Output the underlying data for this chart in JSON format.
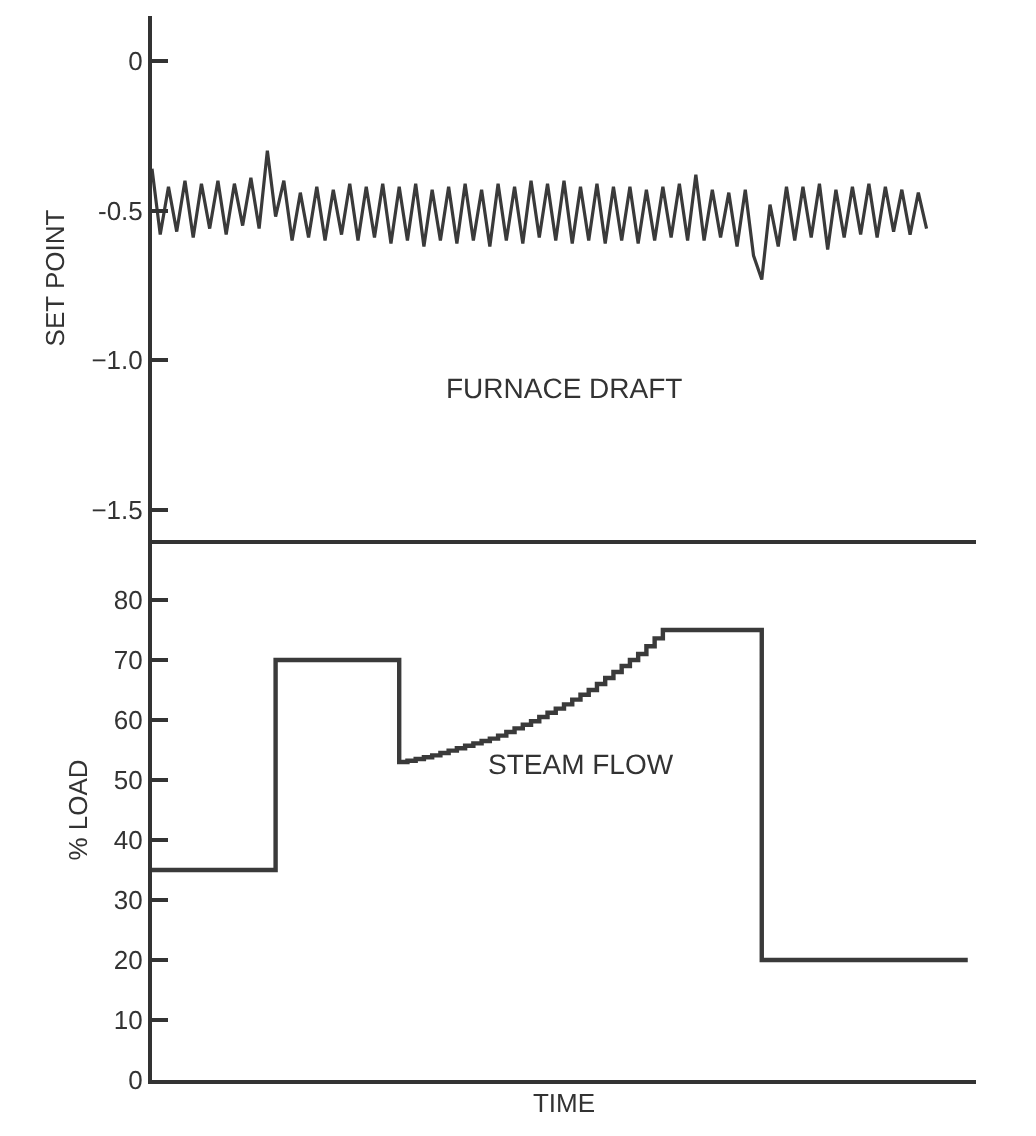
{
  "chart_data": [
    {
      "type": "line",
      "ylabel": "SET POINT",
      "tick_labels": "y",
      "ylim": [
        -1.6,
        0.15
      ],
      "yticks": [
        0,
        {
          "value": -0.5,
          "label": "-0.5"
        },
        {
          "value": -1.0,
          "label": "−1.0"
        },
        {
          "value": -1.5,
          "label": "−1.5"
        }
      ],
      "categories": [
        null,
        null,
        null,
        null,
        null,
        null,
        null,
        null,
        null,
        null,
        null,
        null,
        null,
        null,
        null,
        null,
        null,
        null,
        null,
        null,
        null,
        null,
        null,
        null,
        null,
        null,
        null,
        null,
        null,
        null,
        null,
        null,
        null,
        null,
        null,
        null,
        null,
        null,
        null,
        null,
        null,
        null,
        null,
        null,
        null,
        null,
        null,
        null,
        null,
        null,
        null,
        null,
        null,
        null,
        null,
        null,
        null,
        null,
        null,
        null,
        null,
        null,
        null,
        null,
        null,
        null,
        null,
        null,
        null,
        null,
        null,
        null,
        null,
        null,
        null,
        null,
        null,
        null,
        null,
        null,
        null,
        null,
        null,
        null,
        null,
        null,
        null,
        null,
        null,
        null,
        null,
        null,
        null,
        null,
        null,
        null,
        null,
        null,
        null,
        null
      ],
      "series": [
        {
          "name": "FURNACE DRAFT",
          "color": "#3a3a3a",
          "values": [
            -0.36,
            -0.58,
            -0.42,
            -0.57,
            -0.4,
            -0.59,
            -0.41,
            -0.56,
            -0.4,
            -0.58,
            -0.41,
            -0.55,
            -0.39,
            -0.56,
            -0.3,
            -0.52,
            -0.4,
            -0.6,
            -0.44,
            -0.59,
            -0.42,
            -0.6,
            -0.43,
            -0.58,
            -0.41,
            -0.6,
            -0.42,
            -0.59,
            -0.41,
            -0.61,
            -0.42,
            -0.6,
            -0.41,
            -0.62,
            -0.43,
            -0.6,
            -0.42,
            -0.61,
            -0.41,
            -0.6,
            -0.43,
            -0.62,
            -0.41,
            -0.6,
            -0.42,
            -0.61,
            -0.4,
            -0.59,
            -0.41,
            -0.6,
            -0.4,
            -0.61,
            -0.42,
            -0.6,
            -0.41,
            -0.61,
            -0.42,
            -0.6,
            -0.42,
            -0.61,
            -0.43,
            -0.6,
            -0.42,
            -0.59,
            -0.41,
            -0.6,
            -0.38,
            -0.6,
            -0.43,
            -0.59,
            -0.44,
            -0.62,
            -0.43,
            -0.65,
            -0.73,
            -0.48,
            -0.62,
            -0.42,
            -0.6,
            -0.42,
            -0.59,
            -0.41,
            -0.63,
            -0.43,
            -0.59,
            -0.42,
            -0.58,
            -0.41,
            -0.59,
            -0.42,
            -0.57,
            -0.43,
            -0.58,
            -0.44,
            -0.56,
            null,
            null,
            null,
            null,
            null
          ]
        }
      ]
    },
    {
      "type": "step",
      "xlabel": "TIME",
      "ylabel": "% LOAD",
      "tick_labels": "y",
      "ylim": [
        0,
        90
      ],
      "yticks": [
        0,
        10,
        20,
        30,
        40,
        50,
        60,
        70,
        80
      ],
      "categories": [
        null,
        null,
        null,
        null,
        null,
        null,
        null,
        null,
        null,
        null,
        null,
        null,
        null,
        null,
        null,
        null,
        null,
        null,
        null,
        null,
        null,
        null,
        null,
        null,
        null,
        null,
        null,
        null,
        null,
        null,
        null,
        null,
        null,
        null,
        null,
        null,
        null,
        null,
        null,
        null,
        null,
        null,
        null,
        null,
        null,
        null,
        null,
        null,
        null,
        null,
        null,
        null,
        null,
        null,
        null,
        null,
        null,
        null,
        null,
        null,
        null,
        null,
        null,
        null,
        null,
        null,
        null,
        null,
        null,
        null,
        null,
        null,
        null,
        null,
        null,
        null,
        null,
        null,
        null,
        null,
        null,
        null,
        null,
        null,
        null,
        null,
        null,
        null,
        null,
        null,
        null,
        null,
        null,
        null,
        null,
        null,
        null,
        null,
        null,
        null
      ],
      "series": [
        {
          "name": "STEAM FLOW",
          "color": "#3a3a3a",
          "values": [
            35,
            35,
            35,
            35,
            35,
            35,
            35,
            35,
            35,
            35,
            35,
            35,
            35,
            35,
            35,
            70,
            70,
            70,
            70,
            70,
            70,
            70,
            70,
            70,
            70,
            70,
            70,
            70,
            70,
            70,
            53,
            53.2,
            53.5,
            53.8,
            54.1,
            54.5,
            54.9,
            55.3,
            55.7,
            56.1,
            56.5,
            56.9,
            57.4,
            58,
            58.6,
            59.2,
            59.8,
            60.5,
            61.2,
            61.9,
            62.6,
            63.4,
            64.2,
            65,
            66,
            67,
            68,
            69,
            70,
            71,
            72.3,
            73.6,
            75,
            75,
            75,
            75,
            75,
            75,
            75,
            75,
            75,
            75,
            75,
            75,
            20,
            20,
            20,
            20,
            20,
            20,
            20,
            20,
            20,
            20,
            20,
            20,
            20,
            20,
            20,
            20,
            20,
            20,
            20,
            20,
            20,
            20,
            20,
            20,
            20,
            20
          ]
        }
      ]
    }
  ]
}
